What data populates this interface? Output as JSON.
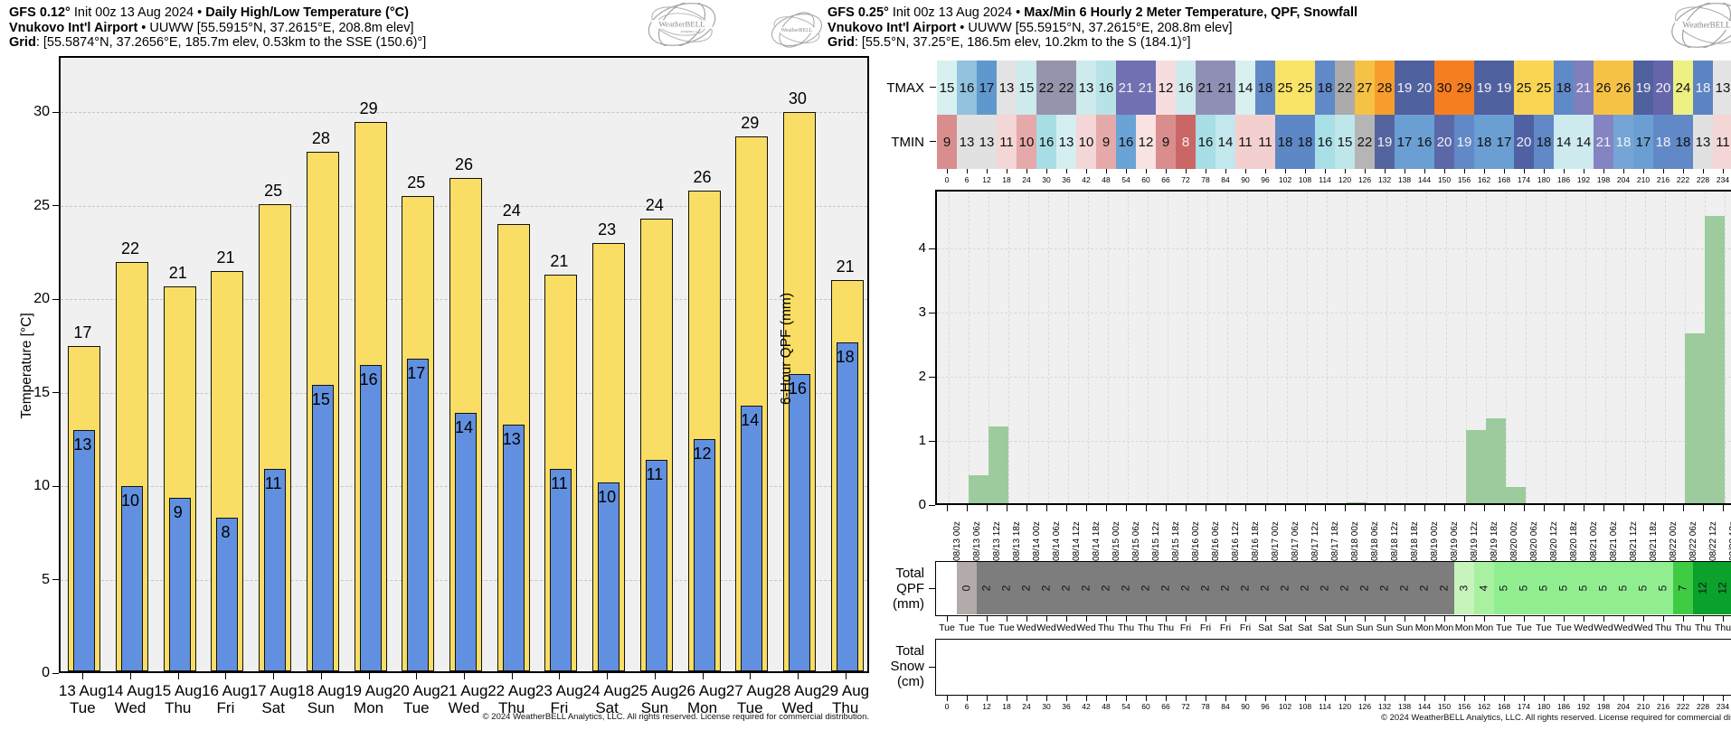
{
  "left": {
    "t1b": "GFS 0.12°",
    "t1m": " Init 00z 13 Aug 2024 • ",
    "t1b2": "Daily High/Low Temperature (°C)",
    "t2b": "Vnukovo Int'l Airport",
    "t2r": " • UUWW [55.5915°N, 37.2615°E, 208.8m elev]",
    "t3b": "Grid",
    "t3r": ": [55.5874°N, 37.2656°E, 185.7m elev, 0.53km to the SSE (150.6)°]",
    "ylabel": "Temperature [°C]",
    "copyright": "© 2024 WeatherBELL Analytics, LLC. All rights reserved. License required for commercial distribution."
  },
  "right": {
    "t1b": "GFS 0.25°",
    "t1m": " Init 00z 13 Aug 2024 • ",
    "t1b2": "Max/Min 6 Hourly 2 Meter Temperature, QPF, Snowfall",
    "t2b": "Vnukovo Int'l Airport",
    "t2r": " • UUWW [55.5915°N, 37.2615°E, 208.8m elev]",
    "t3b": "Grid",
    "t3r": ": [55.5°N, 37.25°E, 186.5m elev, 10.2km to the S (184.1)°]",
    "tmax_label": "TMAX",
    "tmin_label": "TMIN",
    "qpf_ylabel": "6-Hour QPF (mm)",
    "total_qpf_label": [
      "Total",
      "QPF",
      "(mm)"
    ],
    "total_snow_label": [
      "Total",
      "Snow",
      "(cm)"
    ],
    "copyright": "© 2024 WeatherBELL Analytics, LLC. All rights reserved. License required for commercial distribution."
  },
  "logo": {
    "name": "WeatherBELL",
    "sub": "Analytics LLC"
  },
  "chart_data": [
    {
      "id": "daily_high_low",
      "type": "bar",
      "title": "Daily High/Low Temperature (°C)",
      "ylabel": "Temperature [°C]",
      "ylim": [
        0,
        33
      ],
      "yticks": [
        0,
        5,
        10,
        15,
        20,
        25,
        30
      ],
      "categories": [
        "13 Aug",
        "14 Aug",
        "15 Aug",
        "16 Aug",
        "17 Aug",
        "18 Aug",
        "19 Aug",
        "20 Aug",
        "21 Aug",
        "22 Aug",
        "23 Aug",
        "24 Aug",
        "25 Aug",
        "26 Aug",
        "27 Aug",
        "28 Aug",
        "29 Aug"
      ],
      "days": [
        "Tue",
        "Wed",
        "Thu",
        "Fri",
        "Sat",
        "Sun",
        "Mon",
        "Tue",
        "Wed",
        "Thu",
        "Fri",
        "Sat",
        "Sun",
        "Mon",
        "Tue",
        "Wed",
        "Thu"
      ],
      "series": [
        {
          "name": "High",
          "color": "#fadd64",
          "values": [
            17,
            22,
            21,
            21,
            25,
            28,
            29,
            25,
            26,
            24,
            21,
            23,
            24,
            26,
            29,
            30,
            21
          ],
          "bar_tops": [
            17.4,
            21.9,
            20.6,
            21.4,
            25.0,
            27.8,
            29.4,
            25.4,
            26.4,
            23.9,
            21.2,
            22.9,
            24.2,
            25.7,
            28.6,
            29.9,
            20.9
          ]
        },
        {
          "name": "Low",
          "color": "#6190e0",
          "values": [
            13,
            10,
            9,
            8,
            11,
            15,
            16,
            17,
            14,
            13,
            11,
            10,
            11,
            12,
            14,
            16,
            18
          ],
          "bar_tops": [
            12.9,
            9.9,
            9.3,
            8.2,
            10.8,
            15.3,
            16.4,
            16.7,
            13.8,
            13.2,
            10.8,
            10.1,
            11.3,
            12.4,
            14.2,
            15.9,
            17.6
          ]
        }
      ]
    },
    {
      "id": "qpf_6hour",
      "type": "bar",
      "ylabel": "6-Hour QPF (mm)",
      "ylim": [
        0,
        4.9
      ],
      "yticks": [
        0,
        1,
        2,
        3,
        4
      ],
      "bar_color": "#9dcb9d",
      "hour_ticks": [
        0,
        6,
        12,
        18,
        24,
        30,
        36,
        42,
        48,
        54,
        60,
        66,
        72,
        78,
        84,
        90,
        96,
        102,
        108,
        114,
        120,
        126,
        132,
        138,
        144,
        150,
        156,
        162,
        168,
        174,
        180,
        186,
        192,
        198,
        204,
        210,
        216,
        222,
        228,
        234
      ],
      "x_labels": [
        "08/13 00z",
        "08/13 06z",
        "08/13 12z",
        "08/13 18z",
        "08/14 00z",
        "08/14 06z",
        "08/14 12z",
        "08/14 18z",
        "08/15 00z",
        "08/15 06z",
        "08/15 12z",
        "08/15 18z",
        "08/16 00z",
        "08/16 06z",
        "08/16 12z",
        "08/16 18z",
        "08/17 00z",
        "08/17 06z",
        "08/17 12z",
        "08/17 18z",
        "08/18 00z",
        "08/18 06z",
        "08/18 12z",
        "08/18 18z",
        "08/19 00z",
        "08/19 06z",
        "08/19 12z",
        "08/19 18z",
        "08/20 00z",
        "08/20 06z",
        "08/20 12z",
        "08/20 18z",
        "08/21 00z",
        "08/21 06z",
        "08/21 12z",
        "08/21 18z",
        "08/22 00z",
        "08/22 06z",
        "08/22 12z",
        "08/22 18z"
      ],
      "intervals": [
        {
          "start": 6,
          "end": 12,
          "value": 0.5
        },
        {
          "start": 12,
          "end": 18,
          "value": 1.25
        },
        {
          "start": 120,
          "end": 126,
          "value": 0.07
        },
        {
          "start": 156,
          "end": 162,
          "value": 1.2
        },
        {
          "start": 162,
          "end": 168,
          "value": 1.38
        },
        {
          "start": 168,
          "end": 174,
          "value": 0.31
        },
        {
          "start": 222,
          "end": 228,
          "value": 2.7
        },
        {
          "start": 228,
          "end": 234,
          "value": 4.54
        }
      ]
    },
    {
      "id": "tmax_tmin_strip",
      "type": "heatmap",
      "rows": [
        {
          "label": "TMAX",
          "values": [
            15,
            16,
            17,
            13,
            15,
            22,
            22,
            13,
            16,
            21,
            21,
            12,
            16,
            21,
            21,
            14,
            18,
            25,
            25,
            18,
            22,
            27,
            28,
            19,
            20,
            30,
            29,
            19,
            19,
            25,
            25,
            18,
            21,
            26,
            26,
            19,
            20,
            24,
            18,
            13
          ],
          "colors": [
            "#d8f0f0",
            "#92c2de",
            "#5f98cd",
            "#e3e3e3",
            "#cdebed",
            "#9594ac",
            "#9594ac",
            "#cdebed",
            "#b7e2e8",
            "#7070b2",
            "#7070b2",
            "#f6dede",
            "#cdebed",
            "#8f8fb6",
            "#8f8fb6",
            "#d8f0f0",
            "#6089c8",
            "#f9e468",
            "#f9e468",
            "#6089c8",
            "#ababab",
            "#f6c245",
            "#f89d2d",
            "#50619f",
            "#50619f",
            "#f67e20",
            "#f67e20",
            "#50619f",
            "#50619f",
            "#f9d553",
            "#f9d553",
            "#6089c8",
            "#7f7fbd",
            "#f6c245",
            "#f6c245",
            "#50619f",
            "#6565ab",
            "#eff082",
            "#5c84c4",
            "#e3e3e3"
          ],
          "text": [
            "b",
            "b",
            "b",
            "b",
            "b",
            "b",
            "b",
            "b",
            "b",
            "w",
            "w",
            "b",
            "b",
            "b",
            "b",
            "b",
            "b",
            "b",
            "b",
            "b",
            "b",
            "b",
            "b",
            "w",
            "w",
            "b",
            "b",
            "w",
            "w",
            "b",
            "b",
            "b",
            "w",
            "b",
            "b",
            "w",
            "w",
            "b",
            "w",
            "b"
          ]
        },
        {
          "label": "TMIN",
          "values": [
            9,
            13,
            13,
            11,
            10,
            16,
            13,
            10,
            9,
            16,
            12,
            9,
            8,
            16,
            14,
            11,
            11,
            18,
            18,
            16,
            15,
            22,
            19,
            17,
            16,
            20,
            19,
            18,
            17,
            20,
            18,
            14,
            14,
            21,
            18,
            17,
            18,
            18,
            13,
            11
          ],
          "colors": [
            "#d98d8d",
            "#e1e1e1",
            "#e1e1e1",
            "#f4d6d6",
            "#e5a9a9",
            "#a8dee6",
            "#d5eef0",
            "#f4d6d6",
            "#e5a9a9",
            "#6aa3d6",
            "#f8e2e2",
            "#d98d8d",
            "#ca6666",
            "#a8dee6",
            "#c2e7ec",
            "#f4cfcf",
            "#f4cfcf",
            "#5e87c6",
            "#5e87c6",
            "#a9dfe7",
            "#bfe6ea",
            "#b5b5b5",
            "#54649f",
            "#6b9fd3",
            "#6b9fd3",
            "#5a68a8",
            "#6188c7",
            "#6b9fd3",
            "#6b9fd3",
            "#4f61a3",
            "#6188c7",
            "#cdebee",
            "#cdebee",
            "#8484c2",
            "#74a5d6",
            "#6b9fd3",
            "#6188c7",
            "#6188c7",
            "#e1e1e1",
            "#f4d6d6"
          ],
          "text": [
            "b",
            "b",
            "b",
            "b",
            "b",
            "b",
            "b",
            "b",
            "b",
            "b",
            "b",
            "b",
            "w",
            "b",
            "b",
            "b",
            "b",
            "b",
            "b",
            "b",
            "b",
            "b",
            "w",
            "b",
            "b",
            "w",
            "w",
            "b",
            "b",
            "w",
            "b",
            "b",
            "b",
            "w",
            "w",
            "b",
            "w",
            "b",
            "b",
            "b"
          ]
        }
      ]
    },
    {
      "id": "total_qpf_strip",
      "type": "heatmap",
      "values": [
        "",
        "0",
        "2",
        "2",
        "2",
        "2",
        "2",
        "2",
        "2",
        "2",
        "2",
        "2",
        "2",
        "2",
        "2",
        "2",
        "2",
        "2",
        "2",
        "2",
        "2",
        "2",
        "2",
        "2",
        "2",
        "2",
        "3",
        "4",
        "5",
        "5",
        "5",
        "5",
        "5",
        "5",
        "5",
        "5",
        "5",
        "7",
        "12",
        "12"
      ],
      "colors": [
        "#ffffff",
        "#b3aaaa",
        "#7d7d7d",
        "#7d7d7d",
        "#7d7d7d",
        "#7d7d7d",
        "#7d7d7d",
        "#7d7d7d",
        "#7d7d7d",
        "#7d7d7d",
        "#7d7d7d",
        "#7d7d7d",
        "#7d7d7d",
        "#7d7d7d",
        "#7d7d7d",
        "#7d7d7d",
        "#7d7d7d",
        "#7d7d7d",
        "#7d7d7d",
        "#7d7d7d",
        "#7d7d7d",
        "#7d7d7d",
        "#7d7d7d",
        "#7d7d7d",
        "#7d7d7d",
        "#7d7d7d",
        "#c7f4bd",
        "#aaf0a1",
        "#90ee90",
        "#90ee90",
        "#90ee90",
        "#90ee90",
        "#90ee90",
        "#90ee90",
        "#90ee90",
        "#90ee90",
        "#90ee90",
        "#3fcb44",
        "#0aa12c",
        "#0aa12c"
      ],
      "days": [
        "Tue",
        "Tue",
        "Tue",
        "Tue",
        "Wed",
        "Wed",
        "Wed",
        "Wed",
        "Thu",
        "Thu",
        "Thu",
        "Thu",
        "Fri",
        "Fri",
        "Fri",
        "Fri",
        "Sat",
        "Sat",
        "Sat",
        "Sat",
        "Sun",
        "Sun",
        "Sun",
        "Sun",
        "Mon",
        "Mon",
        "Mon",
        "Mon",
        "Tue",
        "Tue",
        "Tue",
        "Tue",
        "Wed",
        "Wed",
        "Wed",
        "Wed",
        "Thu",
        "Thu",
        "Thu",
        "Thu"
      ]
    },
    {
      "id": "total_snow_strip",
      "type": "heatmap",
      "values": [],
      "hour_ticks": [
        0,
        6,
        12,
        18,
        24,
        30,
        36,
        42,
        48,
        54,
        60,
        66,
        72,
        78,
        84,
        90,
        96,
        102,
        108,
        114,
        120,
        126,
        132,
        138,
        144,
        150,
        156,
        162,
        168,
        174,
        180,
        186,
        192,
        198,
        204,
        210,
        216,
        222,
        228,
        234
      ]
    }
  ]
}
